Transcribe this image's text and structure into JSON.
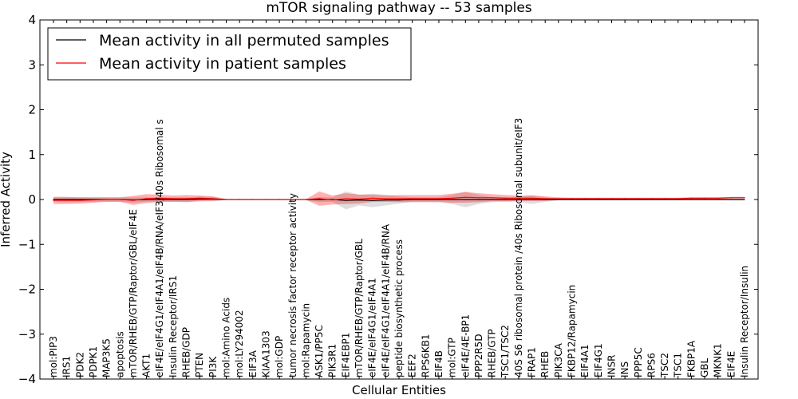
{
  "chart_data": {
    "type": "line",
    "title": "mTOR signaling pathway -- 53 samples",
    "xlabel": "Cellular Entities",
    "ylabel": "Inferred Activity",
    "ylim": [
      -4,
      4
    ],
    "yticks": [
      -4,
      -3,
      -2,
      -1,
      0,
      1,
      2,
      3,
      4
    ],
    "ytick_labels": [
      "−4",
      "−3",
      "−2",
      "−1",
      "0",
      "1",
      "2",
      "3",
      "4"
    ],
    "legend_position": "upper-left",
    "categories": [
      "mol:PIP3",
      "IRS1",
      "PDK2",
      "PDPK1",
      "MAP3K5",
      "apoptosis",
      "mTOR/RHEB/GTP/Raptor/GBL/eIF4E",
      "AKT1",
      "eIF4E/eIF4G1/eIF4A1/eIF4B/RNA/eIF3/40s Ribosomal s",
      "Insulin Receptor/IRS1",
      "RHEB/GDP",
      "PTEN",
      "PI3K",
      "mol:Amino Acids",
      "mol:LY294002",
      "EIF3A",
      "KIAA1303",
      "mol:GDP",
      "tumor necrosis factor receptor activity",
      "mol:Rapamycin",
      "ASK1/PP5C",
      "PIK3R1",
      "EIF4EBP1",
      "mTOR/RHEB/GTP/Raptor/GBL",
      "eIF4E/eIF4G1/eIF4A1",
      "eIF4E/eIF4G1/eIF4A1/eIF4B/RNA",
      "peptide biosynthetic process",
      "EEF2",
      "RPS6KB1",
      "EIF4B",
      "mol:GTP",
      "eIF4E/4E-BP1",
      "PPP2R5D",
      "RHEB/GTP",
      "TSC1/TSC2",
      "40S S6 ribosomal protein /40s Ribosomal subunit/eIF3",
      "FRAP1",
      "RHEB",
      "PIK3CA",
      "FKBP12/Rapamycin",
      "EIF4A1",
      "EIF4G1",
      "INSR",
      "INS",
      "PPP5C",
      "RPS6",
      "TSC2",
      "TSC1",
      "FKBP1A",
      "GBL",
      "MKNK1",
      "EIF4E",
      "Insulin Receptor/Insulin"
    ],
    "series": [
      {
        "name": "Mean activity in all permuted samples",
        "color": "#000000",
        "values": [
          0,
          0,
          0,
          0,
          0,
          0,
          -0.01,
          0,
          0,
          0,
          0,
          0.01,
          0.01,
          0,
          0,
          0,
          0,
          0,
          0,
          0,
          0,
          0,
          -0.02,
          -0.01,
          -0.02,
          -0.01,
          -0.01,
          0,
          0,
          0,
          0,
          0,
          0,
          0,
          0,
          0,
          0,
          0,
          0,
          0,
          0,
          0,
          0,
          0,
          0,
          0,
          0,
          0,
          0,
          0,
          0,
          0,
          0
        ],
        "band": [
          0.05,
          0.05,
          0.05,
          0.05,
          0.05,
          0.05,
          0.06,
          0.05,
          0.05,
          0.05,
          0.05,
          0.06,
          0.05,
          0.01,
          0.01,
          0.01,
          0.01,
          0.01,
          0.01,
          0.01,
          0.06,
          0.05,
          0.2,
          0.12,
          0.15,
          0.12,
          0.08,
          0.05,
          0.05,
          0.05,
          0.1,
          0.17,
          0.1,
          0.06,
          0.05,
          0.05,
          0.1,
          0.05,
          0.02,
          0.02,
          0.02,
          0.02,
          0.02,
          0.02,
          0.02,
          0.02,
          0.02,
          0.02,
          0.02,
          0.02,
          0.02,
          0.02,
          0.02
        ]
      },
      {
        "name": "Mean activity in patient samples",
        "color": "#ff0000",
        "values": [
          -0.02,
          -0.02,
          -0.02,
          -0.01,
          0,
          0,
          -0.02,
          0.02,
          0.03,
          0.02,
          0.02,
          0.03,
          0.02,
          0,
          0,
          0,
          0,
          0,
          0,
          0,
          0.02,
          -0.01,
          0.02,
          0.01,
          0.03,
          0.02,
          0.02,
          0.02,
          0.02,
          0.02,
          0.03,
          0.05,
          0.04,
          0.04,
          0.03,
          0.03,
          0.03,
          0.02,
          0.02,
          0.02,
          0.02,
          0.02,
          0.02,
          0.02,
          0.02,
          0.02,
          0.02,
          0.02,
          0.03,
          0.03,
          0.03,
          0.04,
          0.04
        ],
        "band": [
          0.08,
          0.08,
          0.07,
          0.06,
          0.05,
          0.05,
          0.1,
          0.1,
          0.08,
          0.07,
          0.08,
          0.06,
          0.05,
          0.01,
          0.01,
          0.01,
          0.01,
          0.01,
          0.01,
          0.01,
          0.16,
          0.1,
          0.12,
          0.1,
          0.08,
          0.07,
          0.08,
          0.08,
          0.08,
          0.08,
          0.1,
          0.12,
          0.1,
          0.08,
          0.07,
          0.06,
          0.06,
          0.05,
          0.03,
          0.02,
          0.02,
          0.02,
          0.02,
          0.02,
          0.02,
          0.02,
          0.02,
          0.02,
          0.02,
          0.02,
          0.02,
          0.02,
          0.02
        ]
      }
    ]
  }
}
